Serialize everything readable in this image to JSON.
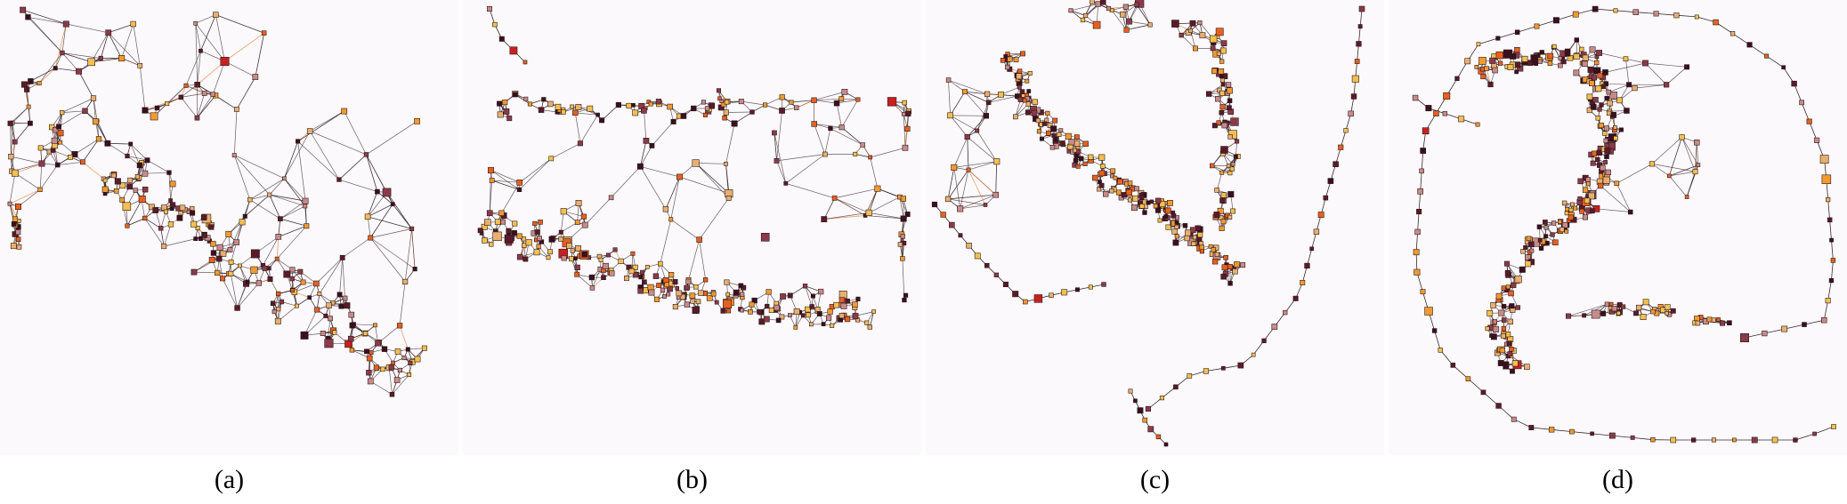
{
  "figure": {
    "panels": [
      {
        "id": "a",
        "caption": "(a)"
      },
      {
        "id": "b",
        "caption": "(b)"
      },
      {
        "id": "c",
        "caption": "(c)"
      },
      {
        "id": "d",
        "caption": "(d)"
      }
    ]
  },
  "colors": {
    "background": "#fcf9fc",
    "edge": "#3a2a2a",
    "edge_highlight": "#e07020",
    "node_outline": "#2a1a1a",
    "node_palette": [
      "#3a0f1e",
      "#5a1a2a",
      "#8a3a4a",
      "#c98a8a",
      "#e8b070",
      "#f5c050",
      "#f29a30",
      "#e86020",
      "#c82020"
    ]
  }
}
